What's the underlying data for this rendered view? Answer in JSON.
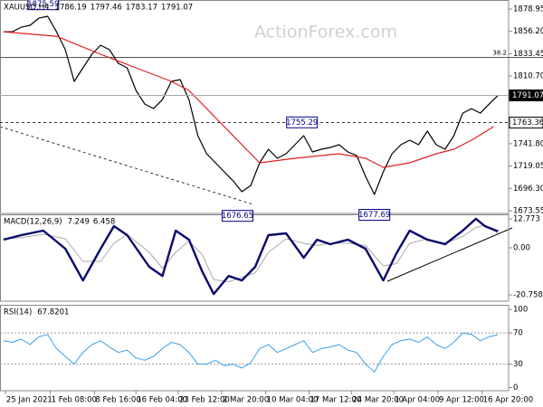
{
  "watermark": "ActionForex.com",
  "chart_data": [
    {
      "type": "line",
      "title": "XAUUSD,H4",
      "title_values": [
        1786.19,
        1797.46,
        1783.17,
        1791.07
      ],
      "xlim": [
        -0.4,
        57.2
      ],
      "xticks": [
        {
          "value": 0.2,
          "label": "25 Jan 2021"
        },
        {
          "value": 5.3,
          "label": "1 Feb 08:00"
        },
        {
          "value": 10.3,
          "label": "8 Feb 16:00"
        },
        {
          "value": 15,
          "label": "16 Feb 04:00"
        },
        {
          "value": 19.8,
          "label": "23 Feb 12:00"
        },
        {
          "value": 24.7,
          "label": "2 Mar 20:00"
        },
        {
          "value": 29.7,
          "label": "10 Mar 04:00"
        },
        {
          "value": 34.6,
          "label": "17 Mar 12:00"
        },
        {
          "value": 39.4,
          "label": "24 Mar 20:00"
        },
        {
          "value": 44.2,
          "label": "1 Apr 04:00"
        },
        {
          "value": 49.2,
          "label": "9 Apr 12:00"
        },
        {
          "value": 54.2,
          "label": "16 Apr 20:00"
        }
      ],
      "ylim": [
        1670.8,
        1888.2
      ],
      "yticks": [
        1878.95,
        {
          "value": 1856.2,
          "label": "1856.20"
        },
        1833.45,
        {
          "value": 1810.7,
          "label": "1810.70"
        },
        {
          "value": 1741.8,
          "label": "1741.80"
        },
        {
          "value": 1719.05,
          "label": "1719.05"
        },
        {
          "value": 1696.3,
          "label": "1696.30"
        },
        1673.55
      ],
      "series": [
        {
          "color": "#000000",
          "width": 1.2,
          "values": [
            1855.9,
            1855.9,
            1860.5,
            1862.4,
            1869.7,
            1871.6,
            1855.9,
            1837.5,
            1805.3,
            1819.1,
            1832.9,
            1842.1,
            1837.5,
            1823.7,
            1819.1,
            1796.1,
            1782.2,
            1777.6,
            1786.8,
            1805.3,
            1807.1,
            1786.8,
            1750.0,
            1731.6,
            1722.4,
            1713.2,
            1704.0,
            1692.9,
            1699.4,
            1722.4,
            1736.2,
            1727.0,
            1731.6,
            1740.8,
            1750.0,
            1733.4,
            1736.2,
            1738.0,
            1740.8,
            1733.4,
            1729.7,
            1708.6,
            1690.1,
            1713.2,
            1731.6,
            1740.8,
            1745.4,
            1740.8,
            1754.6,
            1740.8,
            1736.2,
            1750.0,
            1773.0,
            1777.6,
            1773.0,
            1782.2,
            1791.07
          ]
        },
        {
          "color": "#e02020",
          "width": 1.2,
          "x": [
            0,
            6,
            11,
            15,
            19,
            21,
            24,
            27,
            29,
            33,
            38,
            41,
            43,
            46,
            49,
            51,
            53,
            55.5
          ],
          "values": [
            1855.9,
            1851.3,
            1832.9,
            1819.1,
            1805.3,
            1796.1,
            1768.4,
            1740.8,
            1722.4,
            1727.0,
            1731.6,
            1727.0,
            1717.8,
            1722.4,
            1731.6,
            1736.2,
            1745.4,
            1759.2
          ]
        }
      ],
      "levels": [
        {
          "value": 1829.7,
          "label": "38.2"
        }
      ],
      "price_tags": [
        {
          "value": 1791.07,
          "dash": false
        },
        {
          "value": 1763.36,
          "dash": true
        }
      ],
      "annotations": [
        {
          "value": 1875.59,
          "x": 4.5,
          "side": "above"
        },
        {
          "value": 1755.29,
          "x": 33.8,
          "side": "above"
        },
        {
          "value": 1676.65,
          "x": 26.5,
          "side": "below"
        },
        {
          "value": 1677.69,
          "x": 42,
          "side": "below"
        }
      ]
    },
    {
      "type": "line",
      "title": "MACD(12,26,9)",
      "title_values": [
        7.249,
        6.458
      ],
      "ylim": [
        -23.55,
        14.77
      ],
      "yticks": [
        12.773,
        {
          "value": 0,
          "label": "0.00"
        },
        -20.758
      ],
      "series": [
        {
          "color": "#aaaaaa",
          "width": 1,
          "x": [
            0,
            2,
            4.5,
            7,
            9,
            11,
            12.5,
            14,
            16.5,
            18,
            19.5,
            21,
            22.5,
            23.8,
            25.5,
            27,
            28.5,
            30,
            32,
            34,
            35.5,
            37,
            39,
            41,
            43,
            44.5,
            46,
            48,
            50,
            52,
            53.5,
            54.5,
            56
          ],
          "values": [
            4,
            4.5,
            6,
            4,
            -6,
            -6,
            2,
            6,
            -2,
            -9,
            -2,
            3,
            -3,
            -14,
            -15,
            -13,
            -11,
            -2,
            4,
            2,
            1,
            2,
            2,
            1,
            -8,
            -7,
            2,
            4,
            2,
            5,
            9,
            10,
            6.458
          ]
        },
        {
          "color": "#0a0a6e",
          "width": 2.4,
          "x": [
            0,
            2,
            4.5,
            7,
            9,
            11,
            12.5,
            14,
            16.5,
            18,
            19.5,
            21,
            22.5,
            23.8,
            25.5,
            27,
            28.5,
            30,
            32,
            34,
            35.5,
            37,
            39,
            41,
            43,
            44.5,
            46,
            48,
            50,
            52,
            53.5,
            54.5,
            56
          ],
          "values": [
            3.6,
            5.6,
            7.6,
            -0.4,
            -14.4,
            -0.4,
            9.6,
            5.6,
            -8.4,
            -12.4,
            7.6,
            3.6,
            -10.4,
            -20.4,
            -12.4,
            -14.4,
            -8.4,
            5.6,
            6.4,
            -4.4,
            3.6,
            1.6,
            3.6,
            -0.4,
            -14.4,
            -2.4,
            7.6,
            3.6,
            1.6,
            7.6,
            12.8,
            9.6,
            7.249
          ]
        }
      ]
    },
    {
      "type": "line",
      "title": "RSI(14)",
      "title_values": [
        67.8201
      ],
      "ylim": [
        -4,
        106
      ],
      "yticks": [
        100,
        70,
        30,
        0
      ],
      "rsi_levels": [
        70,
        30
      ],
      "series": [
        {
          "color": "#3aa0e8",
          "width": 1,
          "values": [
            60,
            58,
            62,
            55,
            65,
            68,
            50,
            40,
            30,
            45,
            55,
            60,
            52,
            45,
            48,
            38,
            35,
            40,
            50,
            58,
            55,
            45,
            30,
            30,
            35,
            28,
            30,
            25,
            32,
            50,
            55,
            45,
            50,
            55,
            60,
            45,
            50,
            52,
            55,
            48,
            45,
            30,
            20,
            40,
            55,
            60,
            62,
            58,
            65,
            55,
            50,
            58,
            70,
            68,
            60,
            65,
            67.8201
          ]
        }
      ]
    }
  ]
}
